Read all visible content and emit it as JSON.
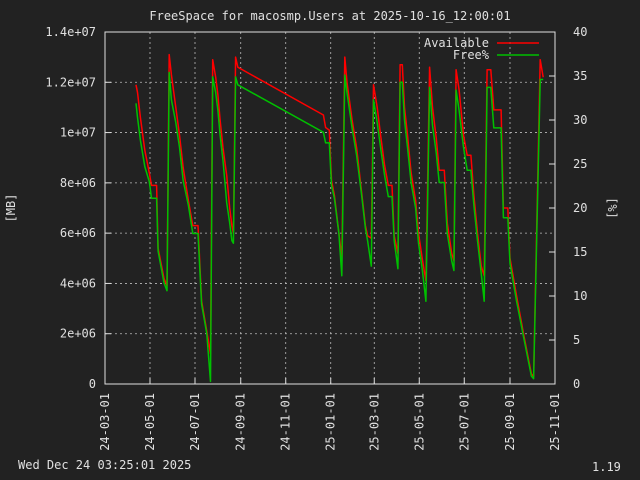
{
  "chart_data": {
    "type": "line",
    "title": "FreeSpace for macosmp.Users  at 2025-10-16_12:00:01",
    "ylabel": "[MB]",
    "y2label": "[%]",
    "ylim": [
      0,
      14000000
    ],
    "y2lim": [
      0,
      40
    ],
    "yticks": [
      0,
      2000000,
      4000000,
      6000000,
      8000000,
      10000000,
      12000000,
      14000000
    ],
    "ytick_labels": [
      "0",
      "2e+06",
      "4e+06",
      "6e+06",
      "8e+06",
      "1e+07",
      "1.2e+07",
      "1.4e+07"
    ],
    "y2ticks": [
      0,
      5,
      10,
      15,
      20,
      25,
      30,
      35,
      40
    ],
    "xlim": [
      "2024-03-01",
      "2025-11-01"
    ],
    "xticks": [
      "2024-03-01",
      "2024-05-01",
      "2024-07-01",
      "2024-09-01",
      "2024-11-01",
      "2025-01-01",
      "2025-03-01",
      "2025-05-01",
      "2025-07-01",
      "2025-09-01",
      "2025-11-01"
    ],
    "xtick_labels": [
      "24-03-01",
      "24-05-01",
      "24-07-01",
      "24-09-01",
      "24-11-01",
      "25-01-01",
      "25-03-01",
      "25-05-01",
      "25-07-01",
      "25-09-01",
      "25-11-01"
    ],
    "grid": true,
    "legend": "top-right",
    "series": [
      {
        "name": "Available",
        "color": "#ff0000",
        "axis": "left",
        "points": [
          [
            "2024-04-12",
            11900000
          ],
          [
            "2024-04-14",
            11600000
          ],
          [
            "2024-04-18",
            10600000
          ],
          [
            "2024-04-24",
            9300000
          ],
          [
            "2024-04-30",
            8400000
          ],
          [
            "2024-05-03",
            7900000
          ],
          [
            "2024-05-10",
            7900000
          ],
          [
            "2024-05-12",
            5400000
          ],
          [
            "2024-05-20",
            4200000
          ],
          [
            "2024-05-24",
            3900000
          ],
          [
            "2024-05-27",
            13100000
          ],
          [
            "2024-05-30",
            12300000
          ],
          [
            "2024-06-05",
            11000000
          ],
          [
            "2024-06-10",
            9900000
          ],
          [
            "2024-06-15",
            8600000
          ],
          [
            "2024-06-22",
            7300000
          ],
          [
            "2024-06-28",
            6300000
          ],
          [
            "2024-07-05",
            6300000
          ],
          [
            "2024-07-10",
            3300000
          ],
          [
            "2024-07-17",
            2100000
          ],
          [
            "2024-07-22",
            1200000
          ],
          [
            "2024-07-25",
            12900000
          ],
          [
            "2024-07-29",
            12200000
          ],
          [
            "2024-08-01",
            11500000
          ],
          [
            "2024-08-04",
            10500000
          ],
          [
            "2024-08-08",
            9400000
          ],
          [
            "2024-08-13",
            8300000
          ],
          [
            "2024-08-17",
            7000000
          ],
          [
            "2024-08-20",
            6300000
          ],
          [
            "2024-08-22",
            6000000
          ],
          [
            "2024-08-25",
            13000000
          ],
          [
            "2024-08-28",
            12600000
          ],
          [
            "2024-12-22",
            10700000
          ],
          [
            "2024-12-25",
            10200000
          ],
          [
            "2024-12-30",
            10100000
          ],
          [
            "2025-01-02",
            8100000
          ],
          [
            "2025-01-06",
            7500000
          ],
          [
            "2025-01-12",
            6000000
          ],
          [
            "2025-01-16",
            5000000
          ],
          [
            "2025-01-20",
            13000000
          ],
          [
            "2025-01-23",
            12000000
          ],
          [
            "2025-01-30",
            10500000
          ],
          [
            "2025-02-05",
            9400000
          ],
          [
            "2025-02-12",
            7600000
          ],
          [
            "2025-02-17",
            6300000
          ],
          [
            "2025-02-20",
            5900000
          ],
          [
            "2025-02-25",
            5800000
          ],
          [
            "2025-02-28",
            11900000
          ],
          [
            "2025-03-05",
            11000000
          ],
          [
            "2025-03-10",
            9800000
          ],
          [
            "2025-03-15",
            8700000
          ],
          [
            "2025-03-20",
            7900000
          ],
          [
            "2025-03-25",
            7900000
          ],
          [
            "2025-03-28",
            5900000
          ],
          [
            "2025-04-02",
            5200000
          ],
          [
            "2025-04-05",
            12700000
          ],
          [
            "2025-04-08",
            12700000
          ],
          [
            "2025-04-11",
            11000000
          ],
          [
            "2025-04-15",
            9900000
          ],
          [
            "2025-04-20",
            8400000
          ],
          [
            "2025-04-26",
            7300000
          ],
          [
            "2025-04-30",
            6000000
          ],
          [
            "2025-05-05",
            5000000
          ],
          [
            "2025-05-10",
            4100000
          ],
          [
            "2025-05-15",
            12600000
          ],
          [
            "2025-05-19",
            11000000
          ],
          [
            "2025-05-24",
            9800000
          ],
          [
            "2025-05-28",
            8500000
          ],
          [
            "2025-06-04",
            8500000
          ],
          [
            "2025-06-08",
            6400000
          ],
          [
            "2025-06-14",
            5200000
          ],
          [
            "2025-06-17",
            4900000
          ],
          [
            "2025-06-20",
            12500000
          ],
          [
            "2025-06-24",
            11700000
          ],
          [
            "2025-06-30",
            9900000
          ],
          [
            "2025-07-05",
            9100000
          ],
          [
            "2025-07-10",
            9100000
          ],
          [
            "2025-07-14",
            7500000
          ],
          [
            "2025-07-19",
            6000000
          ],
          [
            "2025-07-24",
            4700000
          ],
          [
            "2025-07-28",
            4300000
          ],
          [
            "2025-08-01",
            12500000
          ],
          [
            "2025-08-06",
            12500000
          ],
          [
            "2025-08-10",
            10900000
          ],
          [
            "2025-08-20",
            10900000
          ],
          [
            "2025-08-23",
            7000000
          ],
          [
            "2025-08-29",
            7000000
          ],
          [
            "2025-09-01",
            5000000
          ],
          [
            "2025-09-10",
            3500000
          ],
          [
            "2025-09-20",
            1900000
          ],
          [
            "2025-09-30",
            400000
          ],
          [
            "2025-10-03",
            300000
          ],
          [
            "2025-10-12",
            12900000
          ],
          [
            "2025-10-16",
            12200000
          ]
        ]
      },
      {
        "name": "Free%",
        "color": "#00c000",
        "axis": "right",
        "points": [
          [
            "2024-04-12",
            31.9
          ],
          [
            "2024-04-14",
            30.3
          ],
          [
            "2024-04-18",
            27.7
          ],
          [
            "2024-04-24",
            24.7
          ],
          [
            "2024-04-30",
            23.0
          ],
          [
            "2024-05-03",
            21.1
          ],
          [
            "2024-05-10",
            21.1
          ],
          [
            "2024-05-12",
            15.1
          ],
          [
            "2024-05-20",
            11.5
          ],
          [
            "2024-05-24",
            10.6
          ],
          [
            "2024-05-27",
            35.4
          ],
          [
            "2024-05-30",
            32.3
          ],
          [
            "2024-06-05",
            29.7
          ],
          [
            "2024-06-10",
            26.9
          ],
          [
            "2024-06-15",
            23.1
          ],
          [
            "2024-06-22",
            20.3
          ],
          [
            "2024-06-28",
            17.1
          ],
          [
            "2024-07-05",
            17.1
          ],
          [
            "2024-07-10",
            9.1
          ],
          [
            "2024-07-17",
            5.7
          ],
          [
            "2024-07-22",
            0.3
          ],
          [
            "2024-07-25",
            34.9
          ],
          [
            "2024-07-29",
            33.1
          ],
          [
            "2024-08-01",
            31.1
          ],
          [
            "2024-08-04",
            28.3
          ],
          [
            "2024-08-08",
            25.4
          ],
          [
            "2024-08-13",
            20.6
          ],
          [
            "2024-08-17",
            18.3
          ],
          [
            "2024-08-20",
            16.3
          ],
          [
            "2024-08-22",
            16.0
          ],
          [
            "2024-08-25",
            34.9
          ],
          [
            "2024-08-28",
            34.0
          ],
          [
            "2024-12-22",
            28.6
          ],
          [
            "2024-12-25",
            27.4
          ],
          [
            "2024-12-30",
            27.4
          ],
          [
            "2025-01-02",
            22.6
          ],
          [
            "2025-01-06",
            21.1
          ],
          [
            "2025-01-12",
            17.1
          ],
          [
            "2025-01-16",
            12.3
          ],
          [
            "2025-01-20",
            35.1
          ],
          [
            "2025-01-23",
            33.1
          ],
          [
            "2025-01-30",
            29.1
          ],
          [
            "2025-02-05",
            26.0
          ],
          [
            "2025-02-12",
            21.4
          ],
          [
            "2025-02-17",
            17.7
          ],
          [
            "2025-02-20",
            16.3
          ],
          [
            "2025-02-25",
            13.4
          ],
          [
            "2025-02-28",
            32.3
          ],
          [
            "2025-03-05",
            29.7
          ],
          [
            "2025-03-10",
            26.6
          ],
          [
            "2025-03-15",
            23.7
          ],
          [
            "2025-03-20",
            21.3
          ],
          [
            "2025-03-25",
            21.3
          ],
          [
            "2025-03-28",
            16.3
          ],
          [
            "2025-04-02",
            13.1
          ],
          [
            "2025-04-05",
            34.3
          ],
          [
            "2025-04-08",
            34.3
          ],
          [
            "2025-04-11",
            30.0
          ],
          [
            "2025-04-15",
            26.9
          ],
          [
            "2025-04-20",
            22.9
          ],
          [
            "2025-04-26",
            20.0
          ],
          [
            "2025-04-30",
            16.0
          ],
          [
            "2025-05-05",
            13.1
          ],
          [
            "2025-05-10",
            9.4
          ],
          [
            "2025-05-15",
            33.7
          ],
          [
            "2025-05-19",
            29.4
          ],
          [
            "2025-05-24",
            26.3
          ],
          [
            "2025-05-28",
            22.9
          ],
          [
            "2025-06-04",
            22.9
          ],
          [
            "2025-06-08",
            17.1
          ],
          [
            "2025-06-14",
            14.0
          ],
          [
            "2025-06-17",
            12.9
          ],
          [
            "2025-06-20",
            33.4
          ],
          [
            "2025-06-24",
            31.1
          ],
          [
            "2025-06-30",
            26.9
          ],
          [
            "2025-07-05",
            24.3
          ],
          [
            "2025-07-10",
            24.3
          ],
          [
            "2025-07-14",
            20.3
          ],
          [
            "2025-07-19",
            16.3
          ],
          [
            "2025-07-24",
            12.6
          ],
          [
            "2025-07-28",
            9.4
          ],
          [
            "2025-08-01",
            33.7
          ],
          [
            "2025-08-06",
            33.7
          ],
          [
            "2025-08-10",
            29.1
          ],
          [
            "2025-08-20",
            29.1
          ],
          [
            "2025-08-23",
            18.9
          ],
          [
            "2025-08-29",
            18.9
          ],
          [
            "2025-09-01",
            13.7
          ],
          [
            "2025-09-10",
            9.4
          ],
          [
            "2025-09-20",
            5.1
          ],
          [
            "2025-09-30",
            0.9
          ],
          [
            "2025-10-03",
            0.6
          ],
          [
            "2025-10-12",
            34.6
          ],
          [
            "2025-10-16",
            34.6
          ]
        ]
      }
    ]
  },
  "footer": {
    "timestamp": "Wed Dec 24 03:25:01 2025",
    "version": "1.19"
  }
}
